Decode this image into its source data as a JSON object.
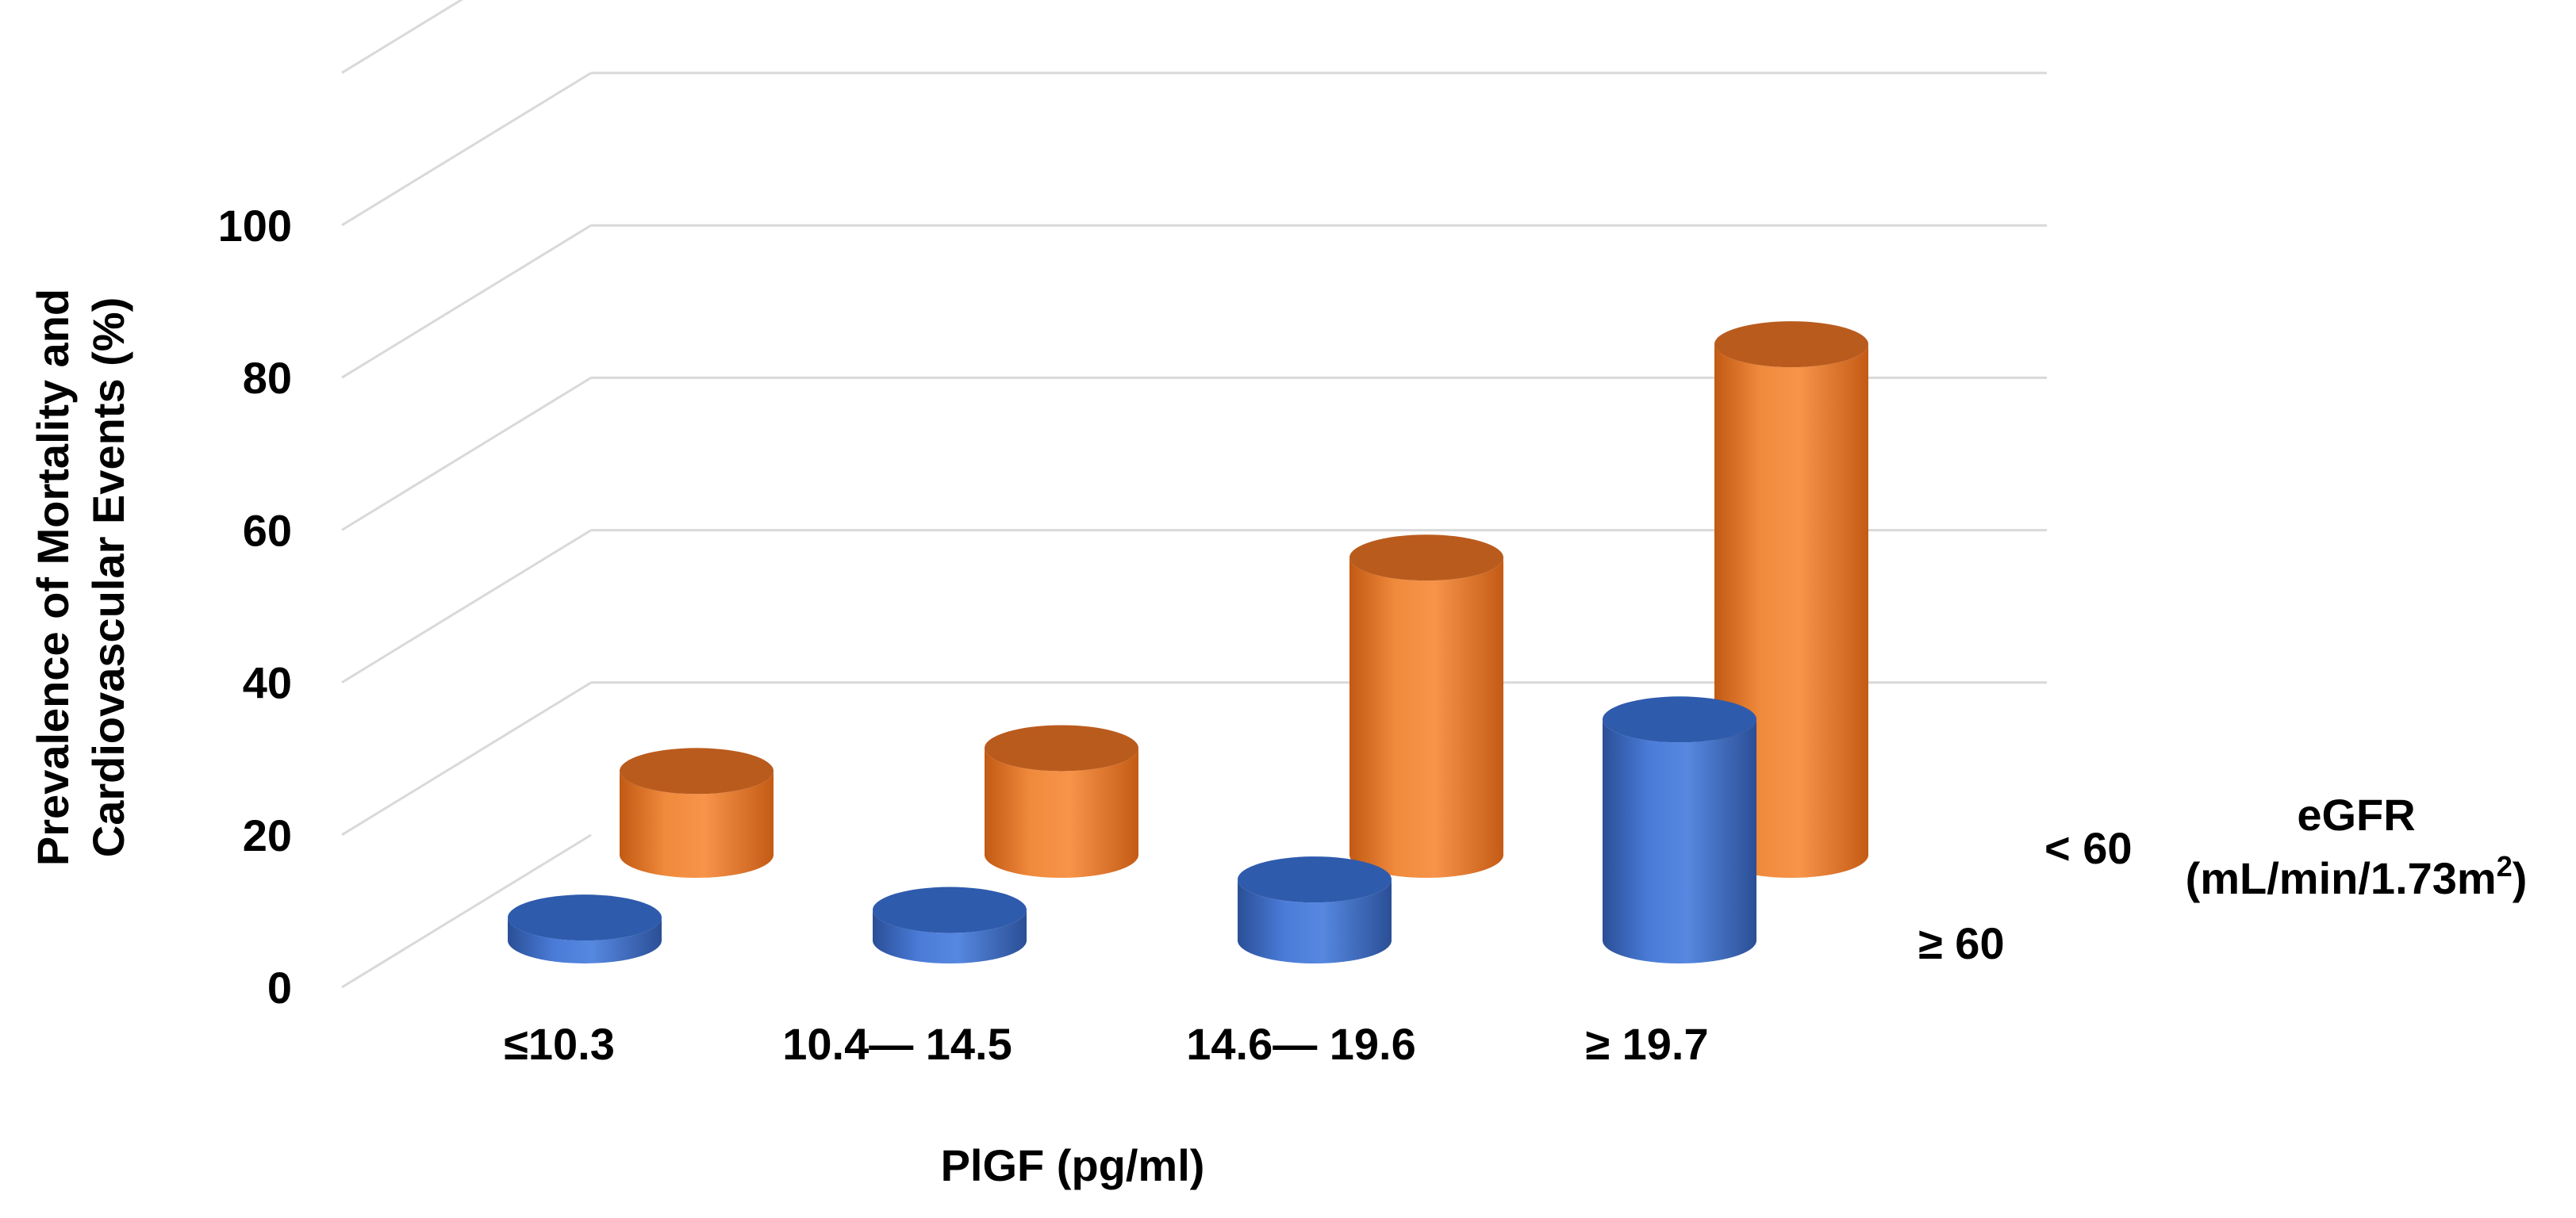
{
  "chart_data": {
    "type": "bar",
    "style": "3d-cylinder",
    "title": "",
    "xlabel": "PlGF (pg/ml)",
    "ylabel_lines": [
      "Prevalence of Mortality and",
      "Cardiovascular Events (%)"
    ],
    "ylim": [
      0,
      100
    ],
    "yticks": [
      0,
      20,
      40,
      60,
      80,
      100
    ],
    "ytick_labels": [
      "0",
      "20",
      "40",
      "60",
      "80",
      "100"
    ],
    "categories": [
      "≤10.3",
      "10.4— 14.5",
      "14.6— 19.6",
      "≥ 19.7"
    ],
    "depth_axis_title_line1": "eGFR",
    "depth_axis_title_line2": "(mL/min/1.73m",
    "depth_axis_title_sup": "2",
    "depth_axis_title_close": ")",
    "series": [
      {
        "name": "≥ 60",
        "color": "#4472C4",
        "values": [
          3,
          4,
          8,
          29
        ]
      },
      {
        "name": "< 60",
        "color": "#ED7D31",
        "values": [
          11,
          14,
          39,
          67
        ]
      }
    ]
  }
}
